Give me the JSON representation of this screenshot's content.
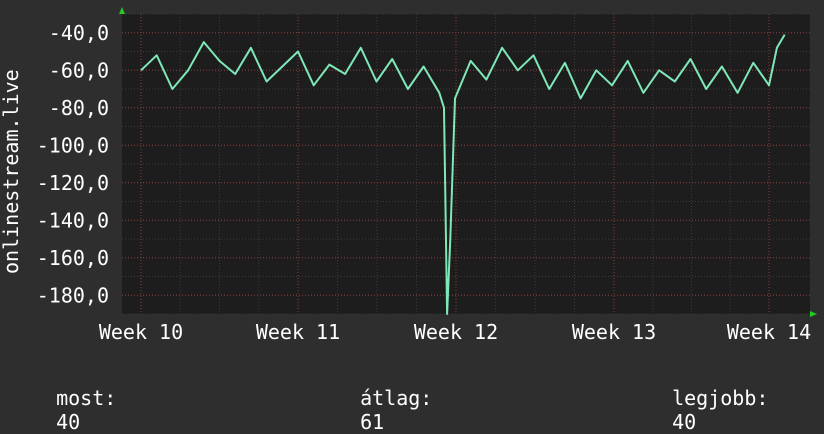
{
  "chart_data": {
    "type": "line",
    "ylabel": "onlinestream.live",
    "y_ticks": [
      -40,
      -60,
      -80,
      -100,
      -120,
      -140,
      -160,
      -180
    ],
    "y_tick_labels": [
      "-40,0",
      "-60,0",
      "-80,0",
      "-100,0",
      "-120,0",
      "-140,0",
      "-160,0",
      "-180,0"
    ],
    "ylim": [
      -190,
      -30
    ],
    "x_tick_labels": [
      "Week 10",
      "Week 11",
      "Week 12",
      "Week 13",
      "Week 14"
    ],
    "grid": true,
    "series": [
      {
        "color": "#7ee8b8",
        "x": [
          0,
          0.1,
          0.2,
          0.3,
          0.4,
          0.5,
          0.6,
          0.7,
          0.8,
          0.9,
          1.0,
          1.1,
          1.2,
          1.3,
          1.4,
          1.5,
          1.6,
          1.7,
          1.8,
          1.9,
          1.93,
          1.95,
          1.97,
          2.0,
          2.1,
          2.2,
          2.3,
          2.4,
          2.5,
          2.6,
          2.7,
          2.8,
          2.9,
          3.0,
          3.1,
          3.2,
          3.3,
          3.4,
          3.5,
          3.6,
          3.7,
          3.8,
          3.9,
          4.0,
          4.05,
          4.1
        ],
        "values": [
          -60,
          -52,
          -70,
          -60,
          -45,
          -55,
          -62,
          -48,
          -66,
          -58,
          -50,
          -68,
          -57,
          -62,
          -48,
          -66,
          -54,
          -70,
          -58,
          -72,
          -80,
          -190,
          -150,
          -75,
          -55,
          -65,
          -48,
          -60,
          -52,
          -70,
          -56,
          -75,
          -60,
          -68,
          -55,
          -72,
          -60,
          -66,
          -54,
          -70,
          -58,
          -72,
          -56,
          -68,
          -48,
          -41
        ]
      }
    ]
  },
  "stats": {
    "most_label": "most:",
    "most_value": "40",
    "avg_label": "átlag:",
    "avg_value": "61",
    "best_label": "legjobb:",
    "best_value": "40"
  },
  "colors": {
    "background": "#2e2e2e",
    "plot_bg": "#1d1d1d",
    "grid": "#8a3a3a",
    "line": "#7ee8b8",
    "axis_arrow": "#22cc22",
    "text": "#ffffff"
  }
}
